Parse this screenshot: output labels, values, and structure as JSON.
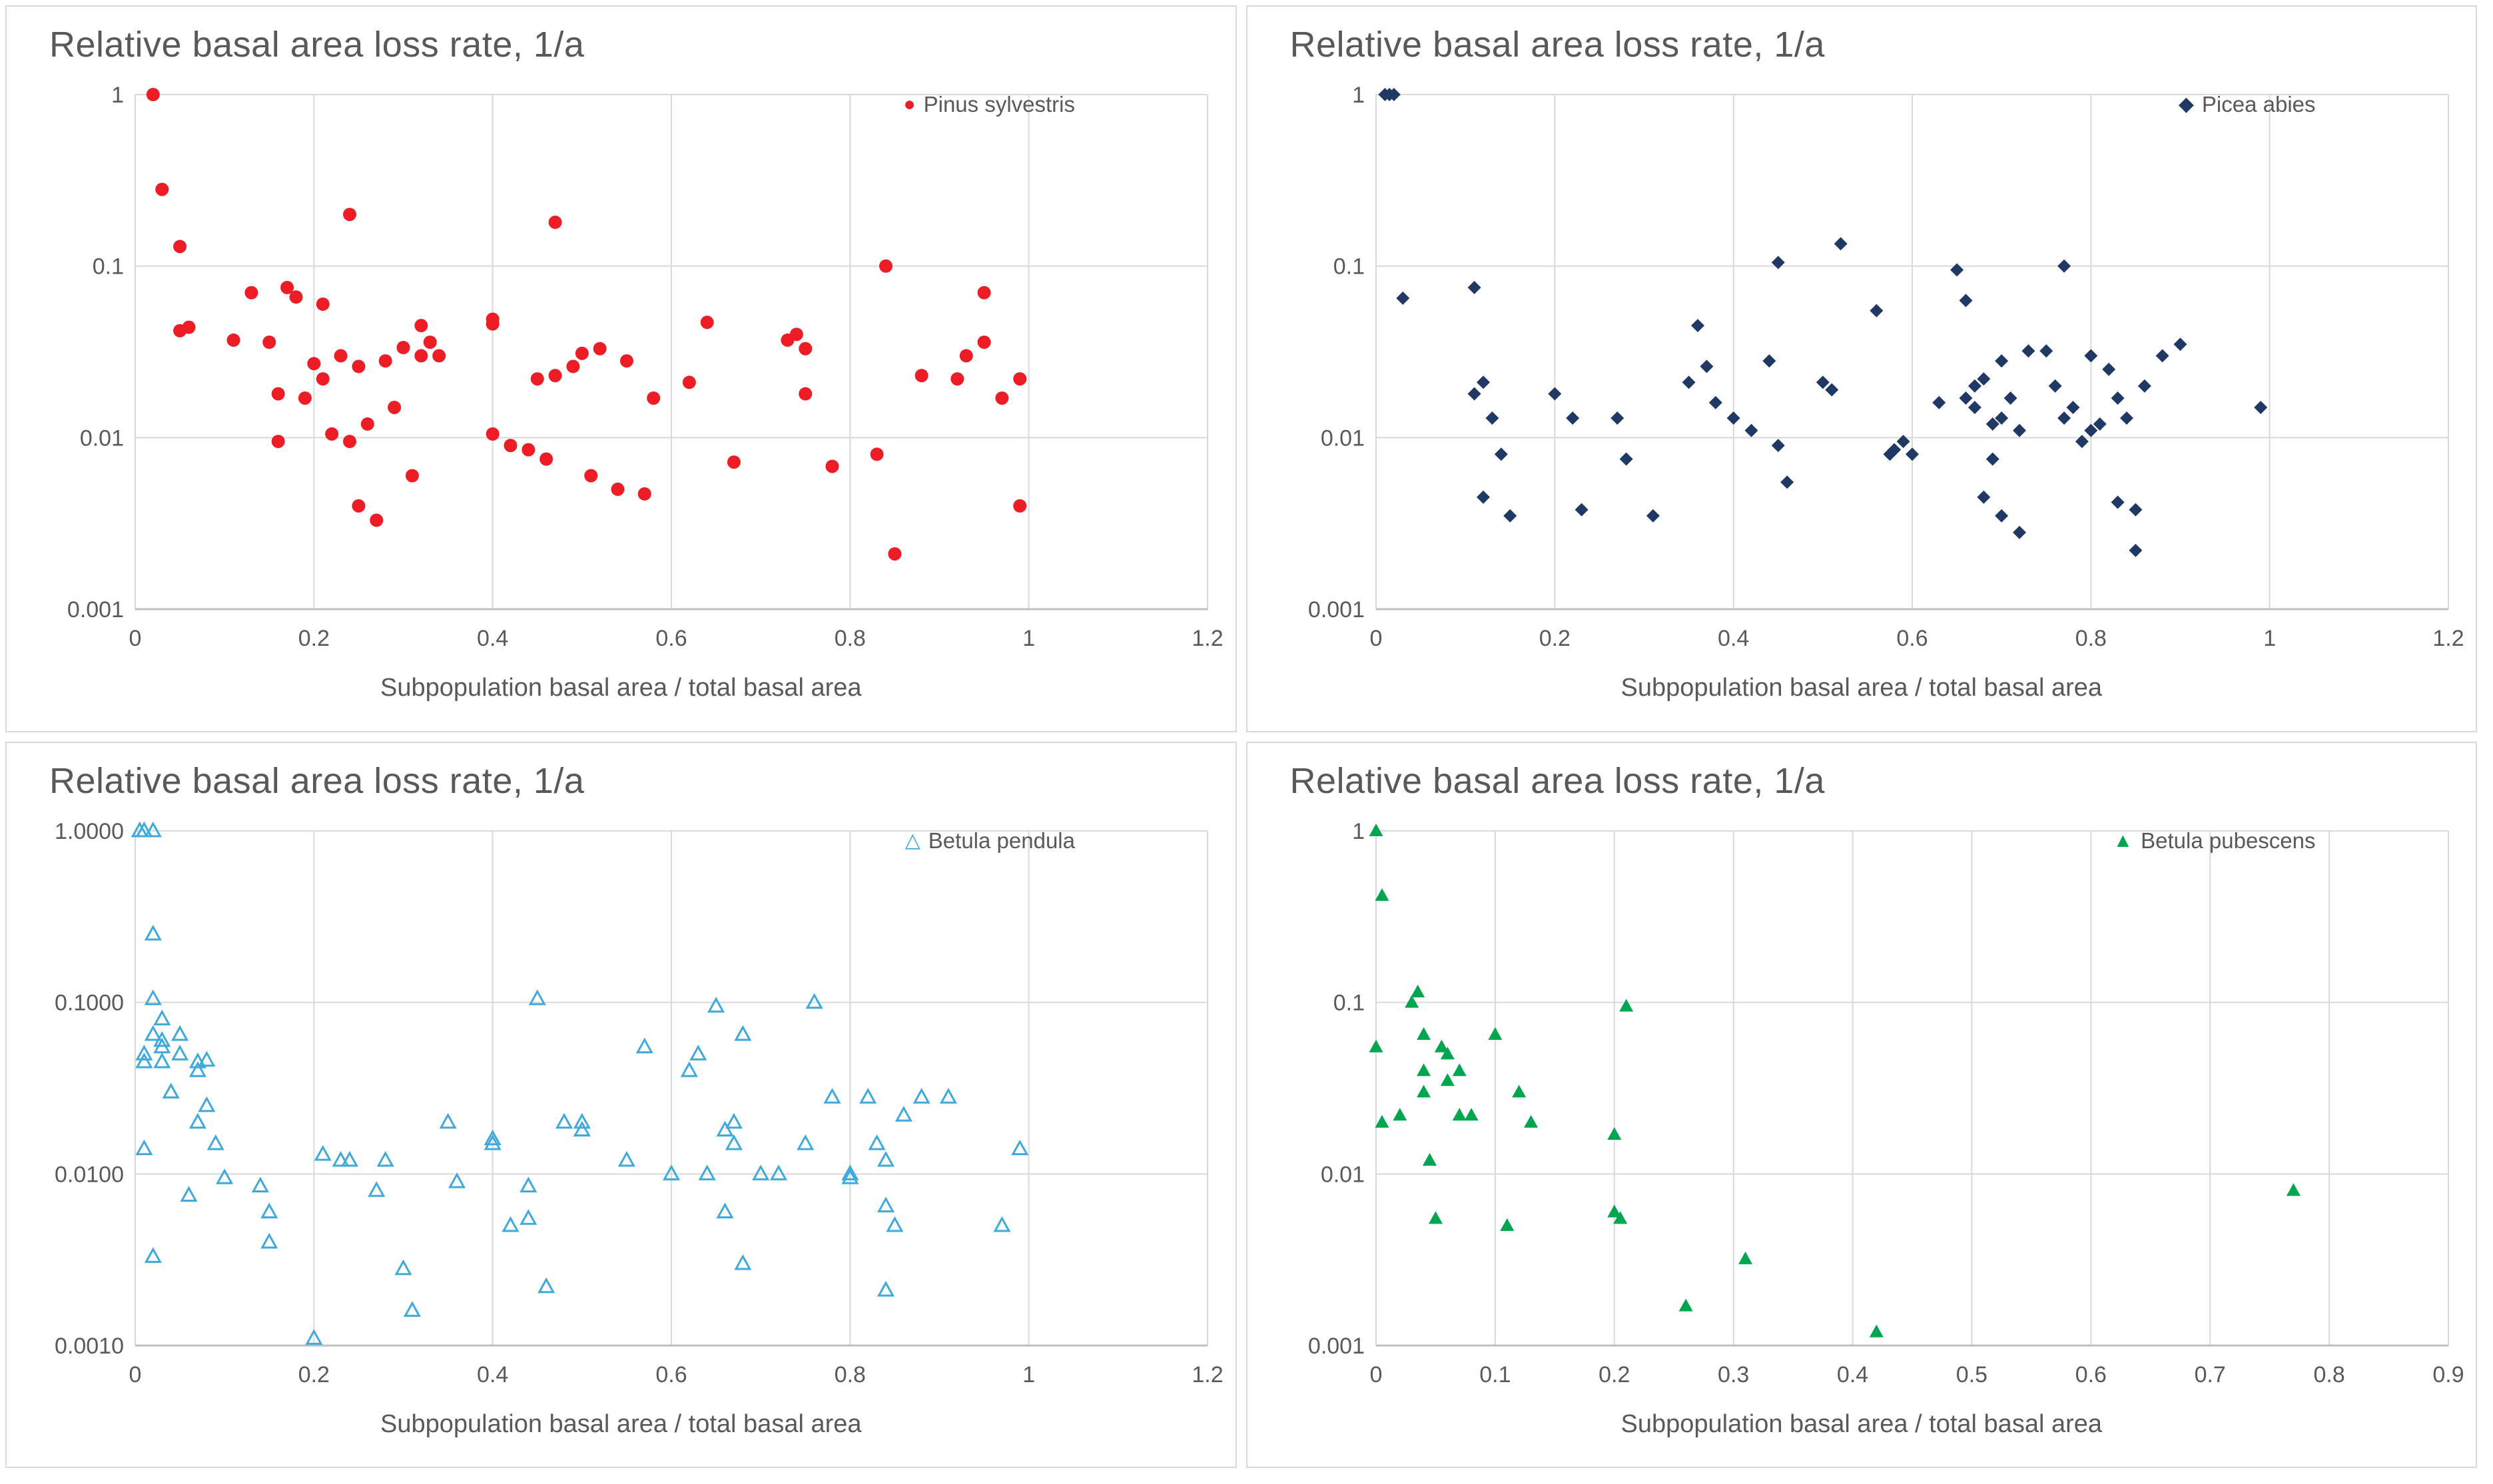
{
  "page": {
    "background": "#ffffff",
    "text_color": "#595959",
    "gridline_color": "#d9d9d9",
    "axis_color": "#bfbfbf"
  },
  "chart_data": [
    {
      "type": "scatter",
      "title": "Relative basal area loss rate, 1/a",
      "xlabel": "Subpopulation basal area / total basal area",
      "series_name": "Pinus sylvestris",
      "marker": "circle",
      "color": "#ee1c25",
      "xlim": [
        0,
        1.2
      ],
      "xticks": [
        0,
        0.2,
        0.4,
        0.6,
        0.8,
        1,
        1.2
      ],
      "xtick_labels": [
        "0",
        "0.2",
        "0.4",
        "0.6",
        "0.8",
        "1",
        "1.2"
      ],
      "ylog": true,
      "ylim": [
        0.001,
        1
      ],
      "yticks": [
        1,
        0.1,
        0.01,
        0.001
      ],
      "ytick_labels": [
        "1",
        "0.1",
        "0.01",
        "0.001"
      ],
      "legend_position": "top-right",
      "grid": true,
      "points": [
        [
          0.02,
          1.0
        ],
        [
          0.03,
          0.28
        ],
        [
          0.05,
          0.13
        ],
        [
          0.05,
          0.042
        ],
        [
          0.06,
          0.044
        ],
        [
          0.11,
          0.037
        ],
        [
          0.13,
          0.07
        ],
        [
          0.15,
          0.036
        ],
        [
          0.16,
          0.0095
        ],
        [
          0.16,
          0.018
        ],
        [
          0.17,
          0.075
        ],
        [
          0.18,
          0.066
        ],
        [
          0.19,
          0.017
        ],
        [
          0.2,
          0.027
        ],
        [
          0.21,
          0.06
        ],
        [
          0.21,
          0.022
        ],
        [
          0.22,
          0.0105
        ],
        [
          0.23,
          0.03
        ],
        [
          0.24,
          0.2
        ],
        [
          0.24,
          0.0095
        ],
        [
          0.25,
          0.026
        ],
        [
          0.25,
          0.004
        ],
        [
          0.26,
          0.012
        ],
        [
          0.27,
          0.0033
        ],
        [
          0.28,
          0.028
        ],
        [
          0.29,
          0.015
        ],
        [
          0.3,
          0.0335
        ],
        [
          0.31,
          0.006
        ],
        [
          0.32,
          0.045
        ],
        [
          0.32,
          0.03
        ],
        [
          0.33,
          0.036
        ],
        [
          0.34,
          0.03
        ],
        [
          0.4,
          0.046
        ],
        [
          0.4,
          0.049
        ],
        [
          0.4,
          0.0105
        ],
        [
          0.42,
          0.009
        ],
        [
          0.44,
          0.0085
        ],
        [
          0.45,
          0.022
        ],
        [
          0.46,
          0.0075
        ],
        [
          0.47,
          0.18
        ],
        [
          0.47,
          0.023
        ],
        [
          0.49,
          0.026
        ],
        [
          0.5,
          0.031
        ],
        [
          0.51,
          0.006
        ],
        [
          0.52,
          0.033
        ],
        [
          0.54,
          0.005
        ],
        [
          0.55,
          0.028
        ],
        [
          0.57,
          0.0047
        ],
        [
          0.58,
          0.017
        ],
        [
          0.62,
          0.021
        ],
        [
          0.64,
          0.047
        ],
        [
          0.67,
          0.0072
        ],
        [
          0.73,
          0.037
        ],
        [
          0.74,
          0.04
        ],
        [
          0.75,
          0.033
        ],
        [
          0.75,
          0.018
        ],
        [
          0.78,
          0.0068
        ],
        [
          0.83,
          0.008
        ],
        [
          0.84,
          0.1
        ],
        [
          0.85,
          0.0021
        ],
        [
          0.88,
          0.023
        ],
        [
          0.92,
          0.022
        ],
        [
          0.93,
          0.03
        ],
        [
          0.95,
          0.036
        ],
        [
          0.95,
          0.07
        ],
        [
          0.97,
          0.017
        ],
        [
          0.99,
          0.022
        ],
        [
          0.99,
          0.004
        ]
      ]
    },
    {
      "type": "scatter",
      "title": "Relative basal area loss rate, 1/a",
      "xlabel": "Subpopulation basal area / total basal area",
      "series_name": "Picea abies",
      "marker": "diamond",
      "color": "#1f3864",
      "xlim": [
        0,
        1.2
      ],
      "xticks": [
        0,
        0.2,
        0.4,
        0.6,
        0.8,
        1,
        1.2
      ],
      "xtick_labels": [
        "0",
        "0.2",
        "0.4",
        "0.6",
        "0.8",
        "1",
        "1.2"
      ],
      "ylog": true,
      "ylim": [
        0.001,
        1
      ],
      "yticks": [
        1,
        0.1,
        0.01,
        0.001
      ],
      "ytick_labels": [
        "1",
        "0.1",
        "0.01",
        "0.001"
      ],
      "legend_position": "top-right",
      "grid": true,
      "points": [
        [
          0.01,
          1.0
        ],
        [
          0.015,
          1.0
        ],
        [
          0.02,
          1.0
        ],
        [
          0.03,
          0.065
        ],
        [
          0.11,
          0.075
        ],
        [
          0.11,
          0.018
        ],
        [
          0.12,
          0.021
        ],
        [
          0.12,
          0.0045
        ],
        [
          0.13,
          0.013
        ],
        [
          0.14,
          0.008
        ],
        [
          0.15,
          0.0035
        ],
        [
          0.2,
          0.018
        ],
        [
          0.22,
          0.013
        ],
        [
          0.23,
          0.0038
        ],
        [
          0.27,
          0.013
        ],
        [
          0.28,
          0.0075
        ],
        [
          0.31,
          0.0035
        ],
        [
          0.35,
          0.021
        ],
        [
          0.36,
          0.045
        ],
        [
          0.37,
          0.026
        ],
        [
          0.38,
          0.016
        ],
        [
          0.4,
          0.013
        ],
        [
          0.42,
          0.011
        ],
        [
          0.44,
          0.028
        ],
        [
          0.45,
          0.105
        ],
        [
          0.45,
          0.009
        ],
        [
          0.46,
          0.0055
        ],
        [
          0.5,
          0.021
        ],
        [
          0.51,
          0.019
        ],
        [
          0.52,
          0.135
        ],
        [
          0.56,
          0.055
        ],
        [
          0.575,
          0.008
        ],
        [
          0.58,
          0.0085
        ],
        [
          0.59,
          0.0095
        ],
        [
          0.6,
          0.008
        ],
        [
          0.63,
          0.016
        ],
        [
          0.65,
          0.095
        ],
        [
          0.66,
          0.063
        ],
        [
          0.66,
          0.017
        ],
        [
          0.67,
          0.02
        ],
        [
          0.67,
          0.015
        ],
        [
          0.68,
          0.022
        ],
        [
          0.68,
          0.0045
        ],
        [
          0.69,
          0.012
        ],
        [
          0.69,
          0.0075
        ],
        [
          0.7,
          0.028
        ],
        [
          0.7,
          0.013
        ],
        [
          0.7,
          0.0035
        ],
        [
          0.71,
          0.017
        ],
        [
          0.72,
          0.011
        ],
        [
          0.72,
          0.0028
        ],
        [
          0.73,
          0.032
        ],
        [
          0.75,
          0.032
        ],
        [
          0.76,
          0.02
        ],
        [
          0.77,
          0.1
        ],
        [
          0.77,
          0.013
        ],
        [
          0.78,
          0.015
        ],
        [
          0.79,
          0.0095
        ],
        [
          0.8,
          0.03
        ],
        [
          0.8,
          0.011
        ],
        [
          0.81,
          0.012
        ],
        [
          0.82,
          0.025
        ],
        [
          0.83,
          0.017
        ],
        [
          0.83,
          0.0042
        ],
        [
          0.84,
          0.013
        ],
        [
          0.85,
          0.0038
        ],
        [
          0.85,
          0.0022
        ],
        [
          0.86,
          0.02
        ],
        [
          0.88,
          0.03
        ],
        [
          0.9,
          0.035
        ],
        [
          0.99,
          0.015
        ]
      ]
    },
    {
      "type": "scatter",
      "title": "Relative basal area loss rate, 1/a",
      "xlabel": "Subpopulation basal area / total basal area",
      "series_name": "Betula pendula",
      "marker": "triangle-open",
      "color": "#3fa9dc",
      "xlim": [
        0,
        1.2
      ],
      "xticks": [
        0,
        0.2,
        0.4,
        0.6,
        0.8,
        1,
        1.2
      ],
      "xtick_labels": [
        "0",
        "0.2",
        "0.4",
        "0.6",
        "0.8",
        "1",
        "1.2"
      ],
      "ylog": true,
      "ylim": [
        0.001,
        1
      ],
      "yticks": [
        1,
        0.1,
        0.01,
        0.001
      ],
      "ytick_labels": [
        "1.0000",
        "0.1000",
        "0.0100",
        "0.0010"
      ],
      "legend_position": "top-right",
      "grid": true,
      "points": [
        [
          0.005,
          1.0
        ],
        [
          0.01,
          1.0
        ],
        [
          0.02,
          1.0
        ],
        [
          0.01,
          0.05
        ],
        [
          0.01,
          0.045
        ],
        [
          0.01,
          0.014
        ],
        [
          0.02,
          0.25
        ],
        [
          0.02,
          0.105
        ],
        [
          0.02,
          0.065
        ],
        [
          0.02,
          0.0033
        ],
        [
          0.03,
          0.08
        ],
        [
          0.03,
          0.06
        ],
        [
          0.03,
          0.055
        ],
        [
          0.03,
          0.045
        ],
        [
          0.04,
          0.03
        ],
        [
          0.05,
          0.065
        ],
        [
          0.05,
          0.05
        ],
        [
          0.06,
          0.0075
        ],
        [
          0.07,
          0.045
        ],
        [
          0.07,
          0.04
        ],
        [
          0.07,
          0.02
        ],
        [
          0.08,
          0.046
        ],
        [
          0.08,
          0.025
        ],
        [
          0.09,
          0.015
        ],
        [
          0.1,
          0.0095
        ],
        [
          0.14,
          0.0085
        ],
        [
          0.15,
          0.006
        ],
        [
          0.15,
          0.004
        ],
        [
          0.2,
          0.0011
        ],
        [
          0.21,
          0.013
        ],
        [
          0.23,
          0.012
        ],
        [
          0.24,
          0.012
        ],
        [
          0.27,
          0.008
        ],
        [
          0.28,
          0.012
        ],
        [
          0.3,
          0.0028
        ],
        [
          0.31,
          0.0016
        ],
        [
          0.35,
          0.02
        ],
        [
          0.36,
          0.009
        ],
        [
          0.4,
          0.016
        ],
        [
          0.4,
          0.015
        ],
        [
          0.42,
          0.005
        ],
        [
          0.44,
          0.0085
        ],
        [
          0.44,
          0.0055
        ],
        [
          0.45,
          0.105
        ],
        [
          0.46,
          0.0022
        ],
        [
          0.48,
          0.02
        ],
        [
          0.5,
          0.02
        ],
        [
          0.5,
          0.018
        ],
        [
          0.55,
          0.012
        ],
        [
          0.57,
          0.055
        ],
        [
          0.6,
          0.01
        ],
        [
          0.62,
          0.04
        ],
        [
          0.63,
          0.05
        ],
        [
          0.64,
          0.01
        ],
        [
          0.65,
          0.095
        ],
        [
          0.66,
          0.018
        ],
        [
          0.66,
          0.006
        ],
        [
          0.67,
          0.02
        ],
        [
          0.67,
          0.015
        ],
        [
          0.68,
          0.065
        ],
        [
          0.68,
          0.003
        ],
        [
          0.7,
          0.01
        ],
        [
          0.72,
          0.01
        ],
        [
          0.75,
          0.015
        ],
        [
          0.76,
          0.1
        ],
        [
          0.78,
          0.028
        ],
        [
          0.8,
          0.01
        ],
        [
          0.8,
          0.0095
        ],
        [
          0.82,
          0.028
        ],
        [
          0.83,
          0.015
        ],
        [
          0.84,
          0.012
        ],
        [
          0.84,
          0.0065
        ],
        [
          0.84,
          0.0021
        ],
        [
          0.85,
          0.005
        ],
        [
          0.86,
          0.022
        ],
        [
          0.88,
          0.028
        ],
        [
          0.91,
          0.028
        ],
        [
          0.97,
          0.005
        ],
        [
          0.99,
          0.014
        ]
      ]
    },
    {
      "type": "scatter",
      "title": "Relative basal area loss rate, 1/a",
      "xlabel": "Subpopulation basal area / total basal area",
      "series_name": "Betula pubescens",
      "marker": "triangle-filled",
      "color": "#00a64f",
      "xlim": [
        0,
        0.9
      ],
      "xticks": [
        0,
        0.1,
        0.2,
        0.3,
        0.4,
        0.5,
        0.6,
        0.7,
        0.8,
        0.9
      ],
      "xtick_labels": [
        "0",
        "0.1",
        "0.2",
        "0.3",
        "0.4",
        "0.5",
        "0.6",
        "0.7",
        "0.8",
        "0.9"
      ],
      "ylog": true,
      "ylim": [
        0.001,
        1
      ],
      "yticks": [
        1,
        0.1,
        0.01,
        0.001
      ],
      "ytick_labels": [
        "1",
        "0.1",
        "0.01",
        "0.001"
      ],
      "legend_position": "top-right",
      "grid": true,
      "points": [
        [
          0.0,
          1.0
        ],
        [
          0.005,
          0.42
        ],
        [
          0.0,
          0.055
        ],
        [
          0.005,
          0.02
        ],
        [
          0.02,
          0.022
        ],
        [
          0.03,
          0.1
        ],
        [
          0.035,
          0.115
        ],
        [
          0.04,
          0.065
        ],
        [
          0.04,
          0.04
        ],
        [
          0.04,
          0.03
        ],
        [
          0.045,
          0.012
        ],
        [
          0.05,
          0.0055
        ],
        [
          0.055,
          0.055
        ],
        [
          0.06,
          0.05
        ],
        [
          0.06,
          0.035
        ],
        [
          0.07,
          0.04
        ],
        [
          0.07,
          0.022
        ],
        [
          0.08,
          0.022
        ],
        [
          0.1,
          0.065
        ],
        [
          0.11,
          0.005
        ],
        [
          0.12,
          0.03
        ],
        [
          0.13,
          0.02
        ],
        [
          0.2,
          0.017
        ],
        [
          0.2,
          0.006
        ],
        [
          0.205,
          0.0055
        ],
        [
          0.21,
          0.095
        ],
        [
          0.26,
          0.0017
        ],
        [
          0.31,
          0.0032
        ],
        [
          0.42,
          0.0012
        ],
        [
          0.77,
          0.008
        ]
      ]
    }
  ]
}
